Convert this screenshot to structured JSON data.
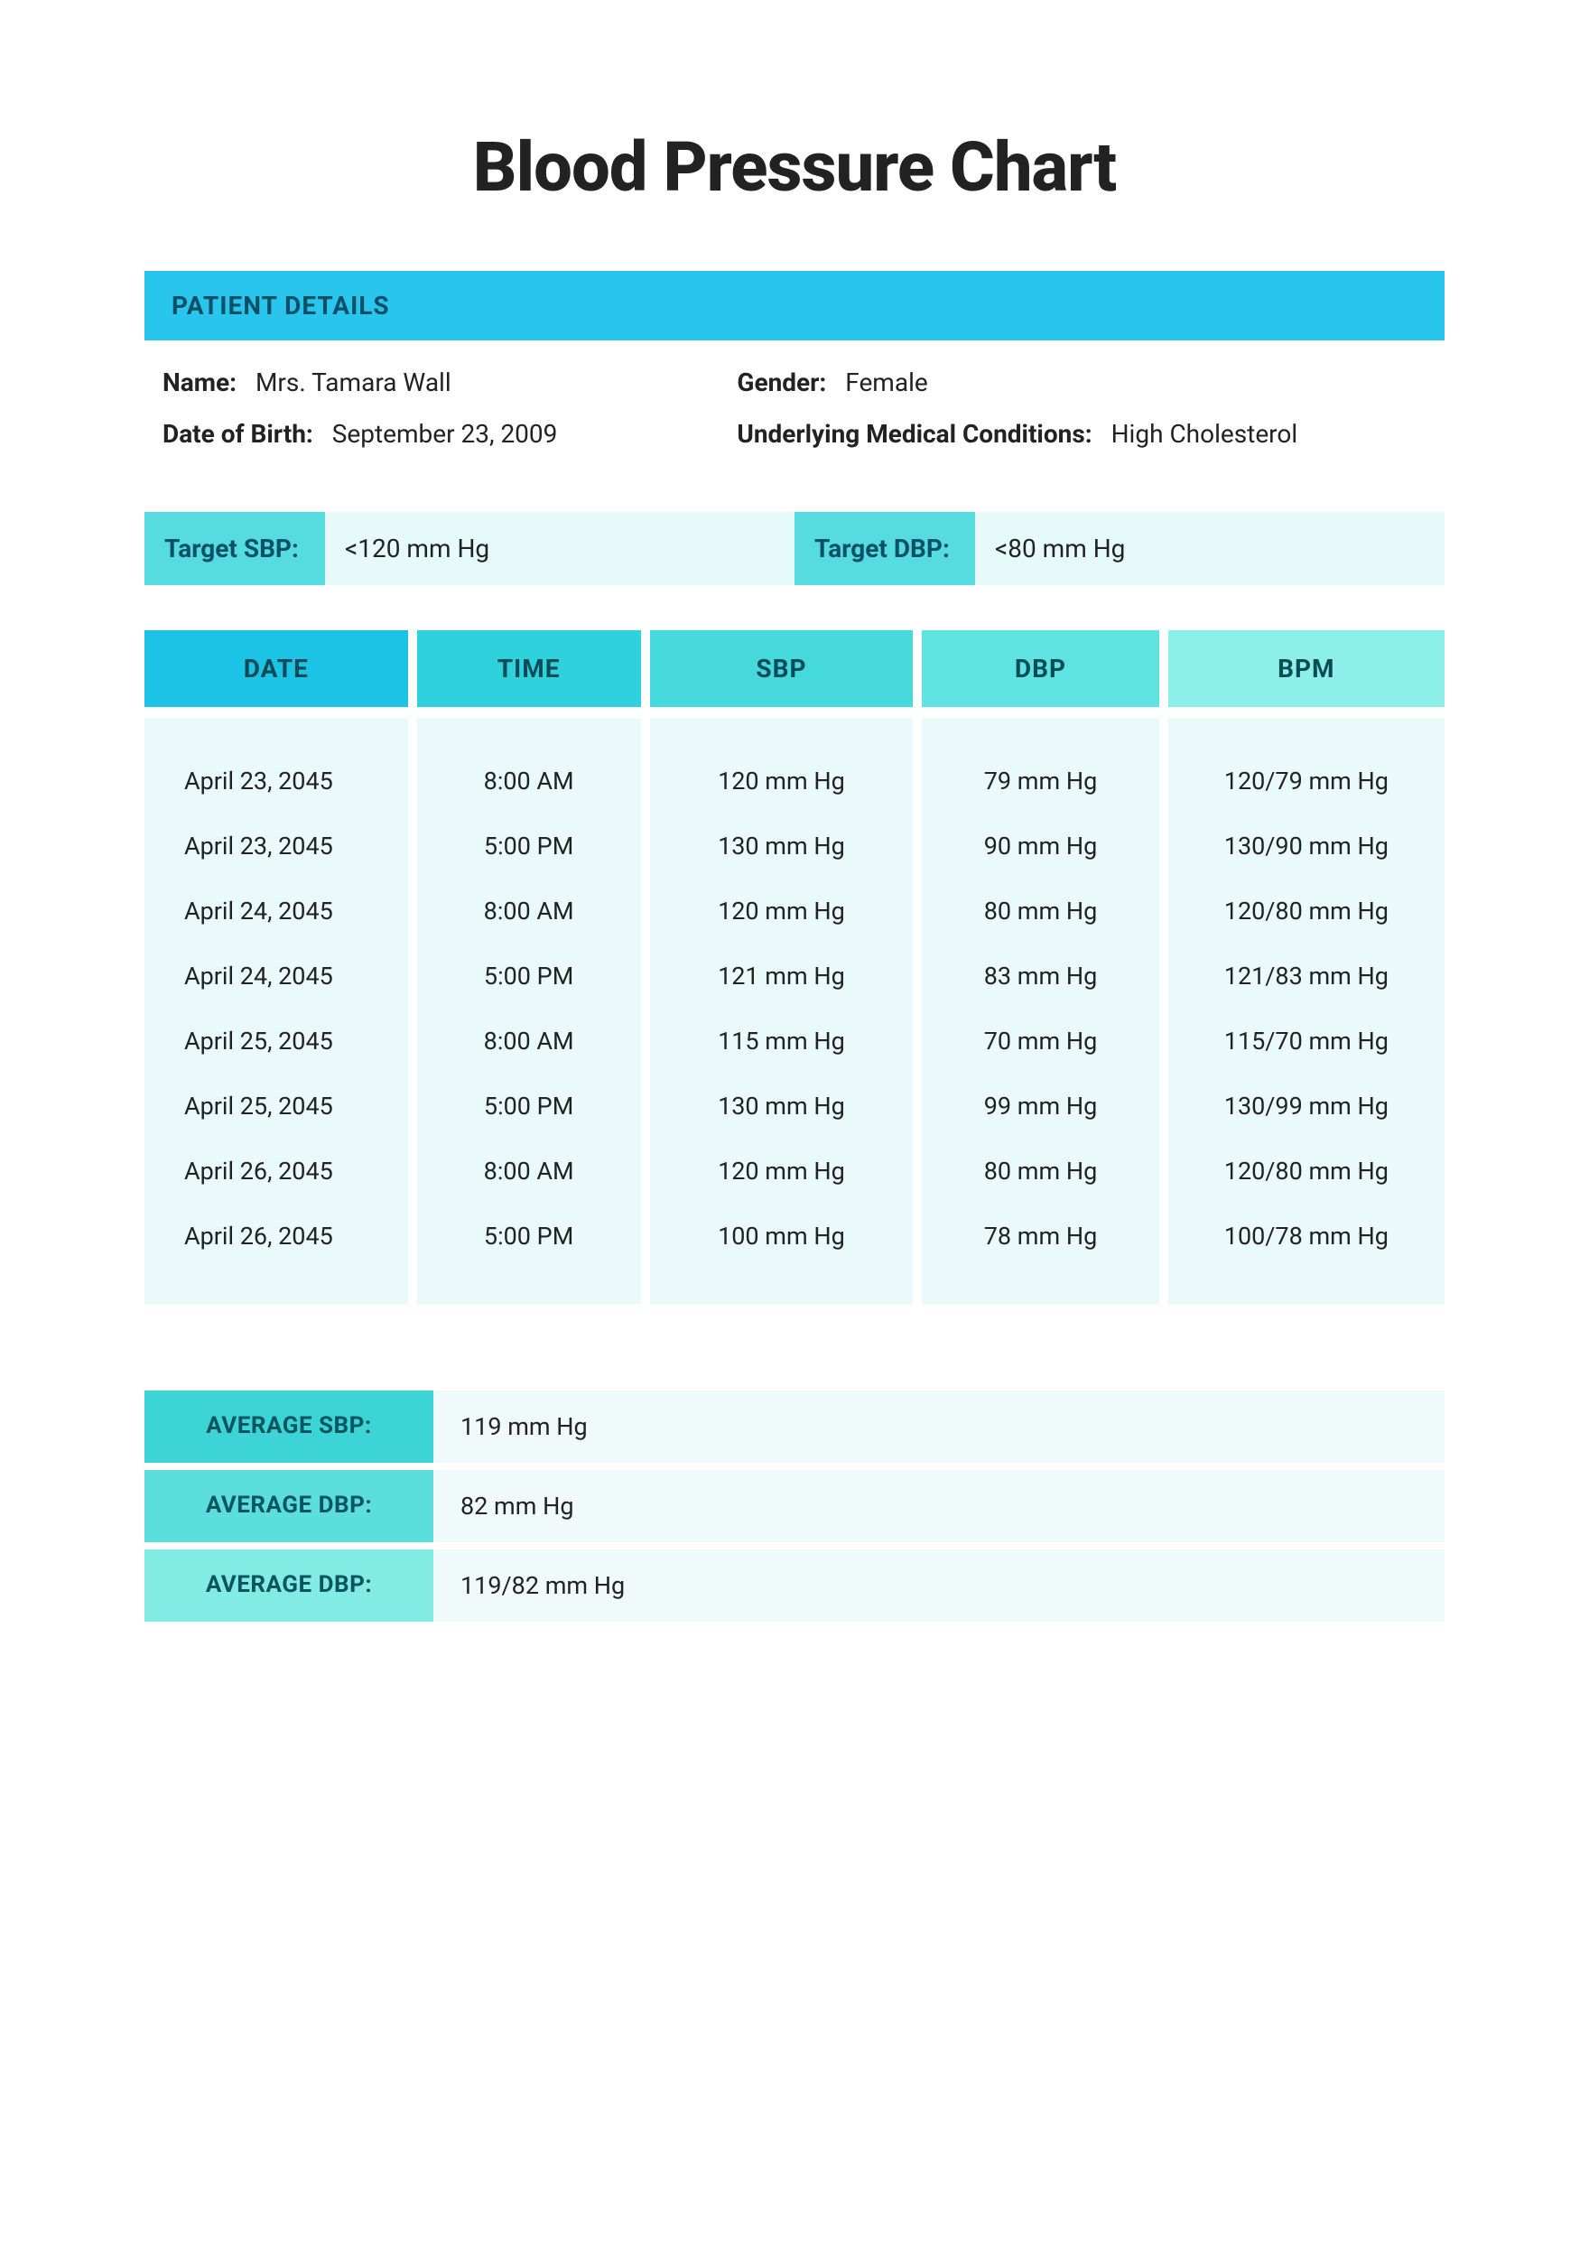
{
  "title": "Blood Pressure Chart",
  "colors": {
    "header_bg": "#2ac5ed",
    "header_fg": "#0a5066",
    "target_label_bg": "#56dbe1",
    "target_val_bg": "#e6fafa",
    "th_gradient": [
      "#1dc3e5",
      "#2fd1dc",
      "#45d9dc",
      "#5fe3e0",
      "#8cf0e8"
    ],
    "th_fg": "#094b57",
    "tbody_bg": "#eafafa",
    "avg_label_gradient": [
      "#3cd4d4",
      "#5cdfdc",
      "#82ece4"
    ],
    "avg_label_fg": "#0a5560",
    "avg_val_bg": "#f1fafa",
    "text": "#222222"
  },
  "patient_section": {
    "header": "PATIENT DETAILS",
    "fields": {
      "name_label": "Name:",
      "name_value": "Mrs. Tamara Wall",
      "gender_label": "Gender:",
      "gender_value": "Female",
      "dob_label": "Date of Birth:",
      "dob_value": "September 23, 2009",
      "conditions_label": "Underlying Medical Conditions:",
      "conditions_value": "High Cholesterol"
    }
  },
  "targets": {
    "sbp_label": "Target SBP:",
    "sbp_value": "<120 mm Hg",
    "dbp_label": "Target DBP:",
    "dbp_value": "<80 mm Hg"
  },
  "table": {
    "columns": [
      "DATE",
      "TIME",
      "SBP",
      "DBP",
      "BPM"
    ],
    "rows": [
      [
        "April 23, 2045",
        "8:00 AM",
        "120 mm Hg",
        "79 mm Hg",
        "120/79 mm Hg"
      ],
      [
        "April 23, 2045",
        "5:00 PM",
        "130 mm Hg",
        "90 mm Hg",
        "130/90 mm Hg"
      ],
      [
        "April 24, 2045",
        "8:00 AM",
        "120 mm Hg",
        "80 mm Hg",
        "120/80 mm Hg"
      ],
      [
        "April 24, 2045",
        "5:00 PM",
        "121 mm Hg",
        "83 mm Hg",
        "121/83 mm Hg"
      ],
      [
        "April 25, 2045",
        "8:00 AM",
        "115 mm Hg",
        "70 mm Hg",
        "115/70 mm Hg"
      ],
      [
        "April 25, 2045",
        "5:00 PM",
        "130 mm Hg",
        "99 mm Hg",
        "130/99 mm Hg"
      ],
      [
        "April 26, 2045",
        "8:00 AM",
        "120 mm Hg",
        "80 mm Hg",
        "120/80 mm Hg"
      ],
      [
        "April 26, 2045",
        "5:00 PM",
        "100 mm Hg",
        "78 mm Hg",
        "100/78 mm Hg"
      ]
    ]
  },
  "averages": [
    {
      "label": "AVERAGE SBP:",
      "value": "119 mm Hg"
    },
    {
      "label": "AVERAGE DBP:",
      "value": "82 mm Hg"
    },
    {
      "label": "AVERAGE DBP:",
      "value": "119/82 mm Hg"
    }
  ]
}
